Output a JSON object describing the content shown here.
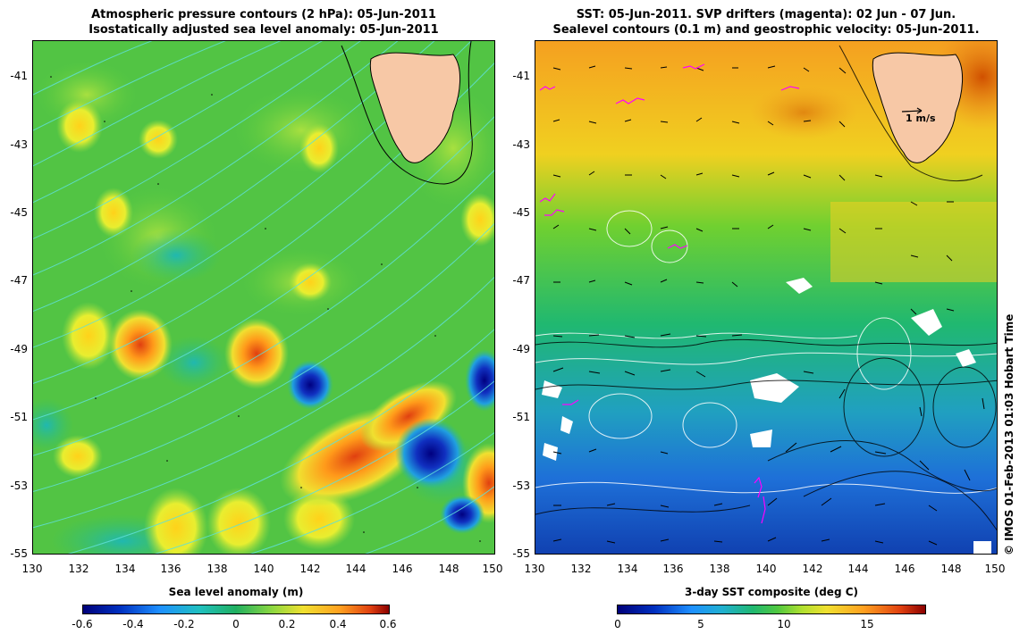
{
  "left": {
    "title_line1": "Atmospheric pressure contours (2 hPa): 05-Jun-2011",
    "title_line2": "Isostatically adjusted sea level anomaly: 05-Jun-2011",
    "colorbar_title": "Sea level anomaly (m)",
    "colorbar_ticks": [
      "-0.6",
      "-0.4",
      "-0.2",
      "0",
      "0.2",
      "0.4",
      "0.6"
    ],
    "colors": {
      "low": "#00008b",
      "mid": "#00b050",
      "high": "#b22222",
      "land": "#f7c8a6",
      "contour": "#40e0d0"
    }
  },
  "right": {
    "title_line1": "SST: 05-Jun-2011. SVP drifters (magenta): 02 Jun - 07 Jun.",
    "title_line2": "Sealevel contours (0.1 m) and geostrophic velocity: 05-Jun-2011.",
    "colorbar_title": "3-day SST composite (deg C)",
    "colorbar_ticks": [
      "0",
      "5",
      "10",
      "15"
    ],
    "velocity_reference": "1 m/s",
    "colors": {
      "cold": "#1e6fd9",
      "mid": "#2ecc40",
      "warm": "#f0a020",
      "land": "#f7c8a6",
      "drifter": "#ff00ff"
    }
  },
  "axes": {
    "y_ticks": [
      "-41",
      "-43",
      "-45",
      "-47",
      "-49",
      "-51",
      "-53",
      "-55"
    ],
    "x_ticks": [
      "130",
      "132",
      "134",
      "136",
      "138",
      "140",
      "142",
      "144",
      "146",
      "148",
      "150"
    ]
  },
  "copyright": "© IMOS 01-Feb-2013 01:03 Hobart Time"
}
